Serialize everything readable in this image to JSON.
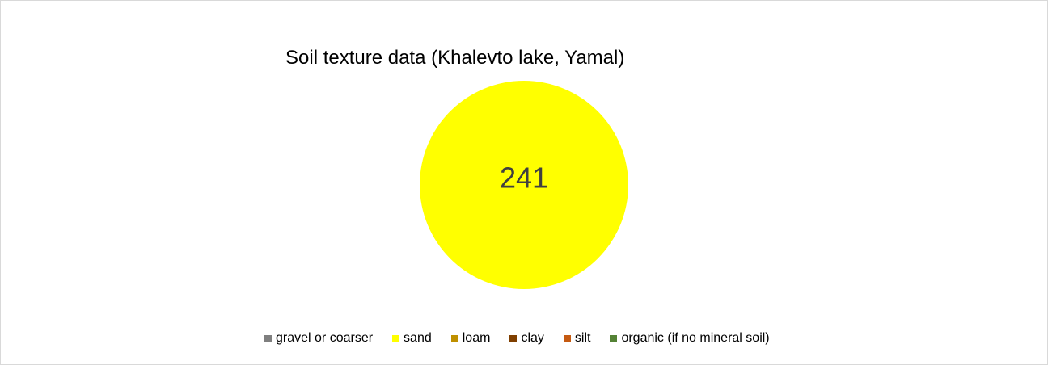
{
  "chart_data": {
    "type": "pie",
    "title": "Soil texture data (Khalevto lake, Yamal)",
    "categories": [
      "gravel or coarser",
      "sand",
      "loam",
      "clay",
      "silt",
      "organic (if no mineral soil)"
    ],
    "values": [
      0,
      241,
      0,
      0,
      0,
      0
    ],
    "data_labels": [
      "",
      "241",
      "",
      "",
      "",
      ""
    ],
    "colors": [
      "#7f7f7f",
      "#ffff00",
      "#bf9000",
      "#7f3f00",
      "#c55a11",
      "#548235"
    ],
    "legend_position": "bottom"
  }
}
